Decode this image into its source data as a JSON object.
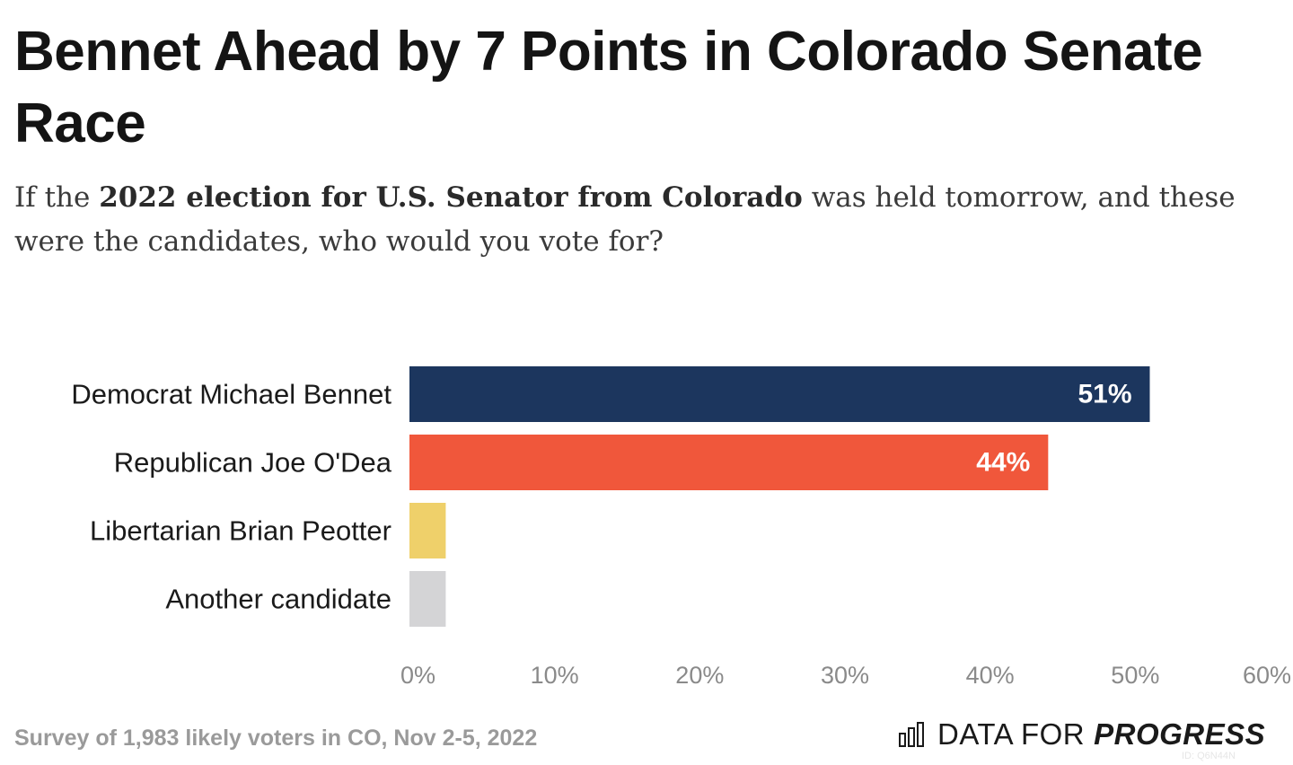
{
  "header": {
    "title": "Bennet Ahead by 7 Points in Colorado Senate Race",
    "subtitle_before": "If the ",
    "subtitle_bold": "2022 election for U.S. Senator from Colorado",
    "subtitle_after": " was held tomorrow, and these were the candidates, who would you vote for?"
  },
  "footer": {
    "source": "Survey of 1,983 likely voters in CO, Nov 2-5, 2022",
    "logo_light": "DATA FOR",
    "logo_bold": "PROGRESS",
    "chart_id": "ID: Q6N44N"
  },
  "chart_data": {
    "type": "bar",
    "orientation": "horizontal",
    "categories": [
      "Democrat Michael Bennet",
      "Republican Joe O'Dea",
      "Libertarian Brian Peotter",
      "Another candidate"
    ],
    "values": [
      51,
      44,
      2.5,
      2.5
    ],
    "data_labels": [
      "51%",
      "44%",
      "",
      ""
    ],
    "colors": [
      "#1c365e",
      "#f0573b",
      "#efd06a",
      "#d4d4d6"
    ],
    "label_color": "#ffffff",
    "xlim": [
      0,
      60
    ],
    "x_ticks": [
      0,
      10,
      20,
      30,
      40,
      50,
      60
    ],
    "x_tick_labels": [
      "0%",
      "10%",
      "20%",
      "30%",
      "40%",
      "50%",
      "60%"
    ],
    "grid": false,
    "legend": "none"
  }
}
